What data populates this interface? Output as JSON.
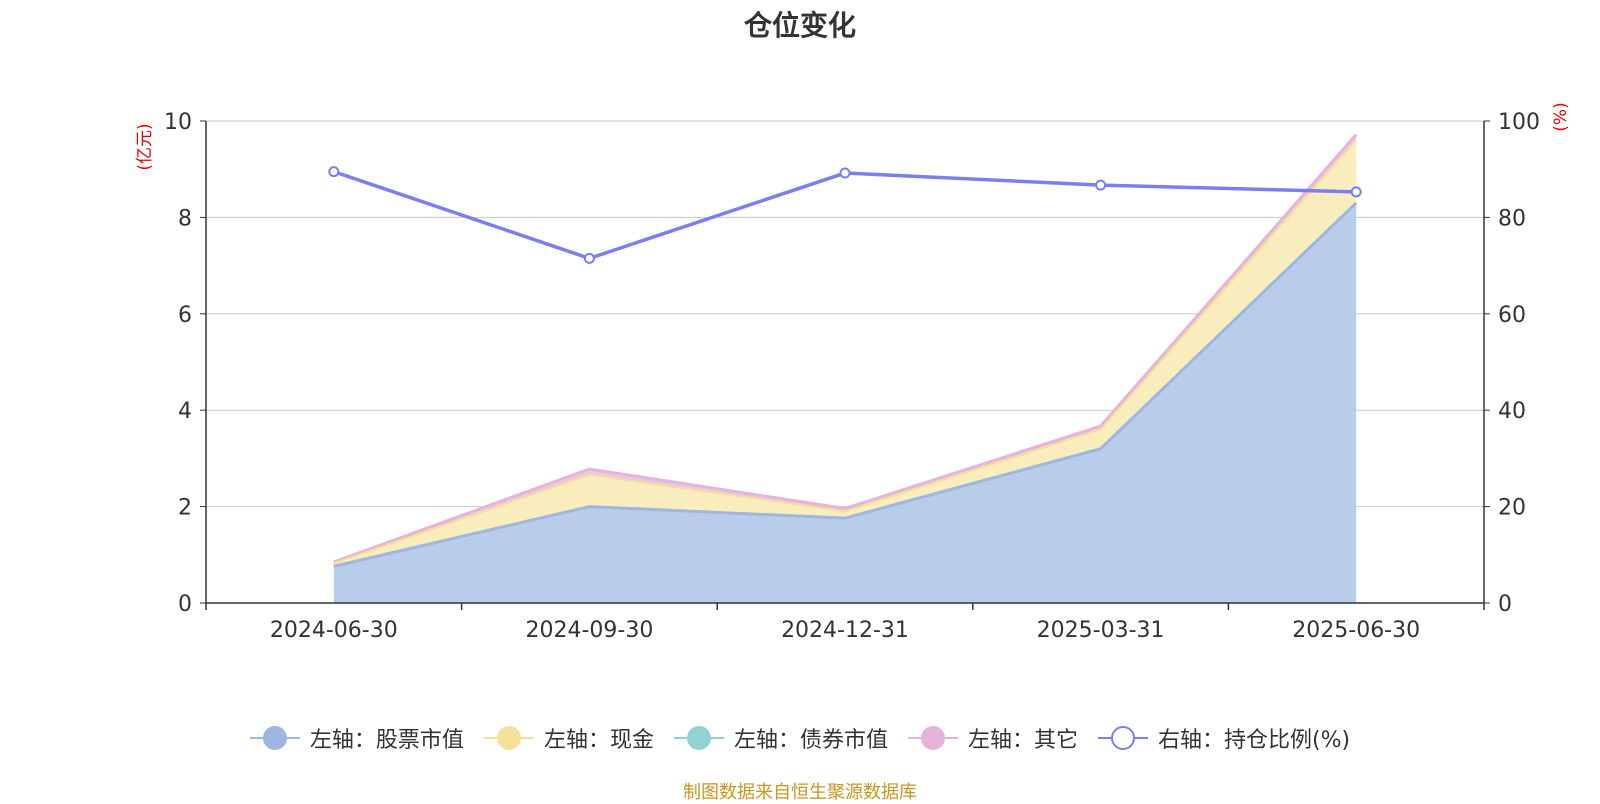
{
  "title": "仓位变化",
  "source": "制图数据来自恒生聚源数据库",
  "colors": {
    "stock": "#9db7e0",
    "stock_fill": "#b8cdea",
    "cash": "#f5e09a",
    "cash_fill": "#faedbd",
    "bond": "#93d2d4",
    "other": "#e6b4d8",
    "ratio": "#7a7ff0",
    "axis_unit": "#e60000",
    "grid": "#c8c8c8",
    "axis": "#333333"
  },
  "legend": [
    {
      "label": "左轴：股票市值",
      "color": "#9db7e0",
      "hollow": false
    },
    {
      "label": "左轴：现金",
      "color": "#f5e09a",
      "hollow": false
    },
    {
      "label": "左轴：债券市值",
      "color": "#93d2d4",
      "hollow": false
    },
    {
      "label": "左轴：其它",
      "color": "#e6b4d8",
      "hollow": false
    },
    {
      "label": "右轴：持仓比例(%)",
      "color": "#7a7ff0",
      "hollow": true
    }
  ],
  "chart_data": {
    "type": "area",
    "stacked": true,
    "title": "仓位变化",
    "categories": [
      "2024-06-30",
      "2024-09-30",
      "2024-12-31",
      "2025-03-31",
      "2025-06-30"
    ],
    "left_axis": {
      "unit": "(亿元)",
      "ylim": [
        0,
        10
      ],
      "ticks": [
        0,
        2,
        4,
        6,
        8,
        10
      ]
    },
    "right_axis": {
      "unit": "(%)",
      "ylim": [
        0,
        100
      ],
      "ticks": [
        0,
        20,
        40,
        60,
        80,
        100
      ]
    },
    "series": [
      {
        "name": "左轴：股票市值",
        "axis": "left",
        "values": [
          0.76,
          2.0,
          1.76,
          3.2,
          8.3
        ]
      },
      {
        "name": "左轴：现金",
        "axis": "left",
        "values": [
          0.06,
          0.66,
          0.14,
          0.4,
          1.3
        ]
      },
      {
        "name": "左轴：债券市值",
        "axis": "left",
        "values": [
          0,
          0,
          0,
          0,
          0
        ]
      },
      {
        "name": "左轴：其它",
        "axis": "left",
        "values": [
          0.03,
          0.12,
          0.06,
          0.07,
          0.12
        ]
      },
      {
        "name": "右轴：持仓比例(%)",
        "axis": "right",
        "type": "line",
        "values": [
          89.5,
          71.5,
          89.2,
          86.7,
          85.3
        ]
      }
    ],
    "grid": true,
    "legend_position": "bottom"
  }
}
